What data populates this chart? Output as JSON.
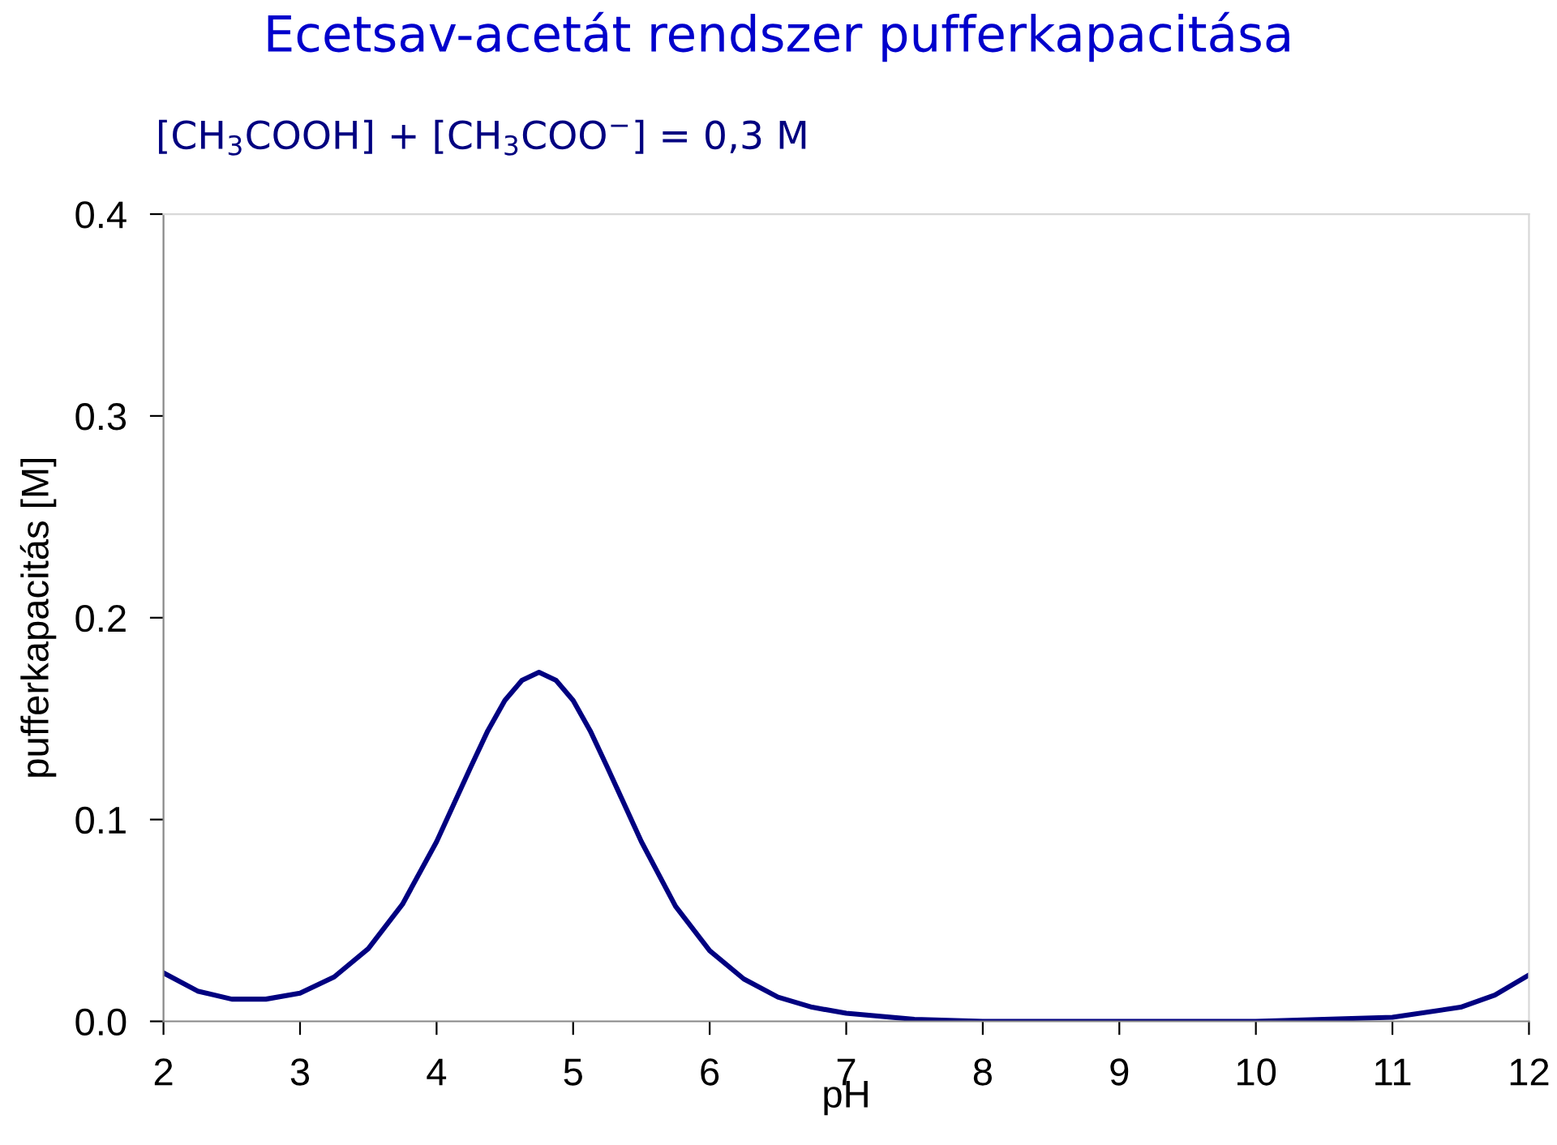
{
  "chart_data": {
    "type": "line",
    "title": "Ecetsav-acetát rendszer pufferkapacitása",
    "subtitle": "[CH$_{3}$COOH] + [CH$_{3}$COO$^{−}$] = 0,3 M",
    "xlabel": "pH",
    "ylabel": "pufferkapacitás [M]",
    "x": [
      2,
      2.25,
      2.5,
      2.75,
      3,
      3.25,
      3.5,
      3.75,
      4,
      4.25,
      4.375,
      4.5,
      4.625,
      4.75,
      4.875,
      5,
      5.125,
      5.25,
      5.5,
      5.75,
      6,
      6.25,
      6.5,
      6.75,
      7,
      7.5,
      8,
      9,
      10,
      10.5,
      11,
      11.5,
      11.75,
      12
    ],
    "series": [
      {
        "color": "#000080",
        "values": [
          0.024,
          0.015,
          0.011,
          0.011,
          0.014,
          0.022,
          0.036,
          0.058,
          0.089,
          0.126,
          0.144,
          0.159,
          0.169,
          0.173,
          0.169,
          0.159,
          0.144,
          0.126,
          0.089,
          0.057,
          0.035,
          0.021,
          0.012,
          0.007,
          0.004,
          0.001,
          0.0,
          0.0,
          0.0,
          0.001,
          0.002,
          0.007,
          0.013,
          0.023
        ]
      }
    ],
    "xlim": [
      2,
      12
    ],
    "ylim": [
      0,
      0.4
    ],
    "xticks": [
      2,
      3,
      4,
      5,
      6,
      7,
      8,
      9,
      10,
      11,
      12
    ],
    "yticks": [
      {
        "value": 0,
        "label": "0.0"
      },
      0.1,
      0.2,
      0.3,
      0.4
    ],
    "grid": false,
    "legend": false,
    "marker": "none",
    "line_style": "solid"
  }
}
